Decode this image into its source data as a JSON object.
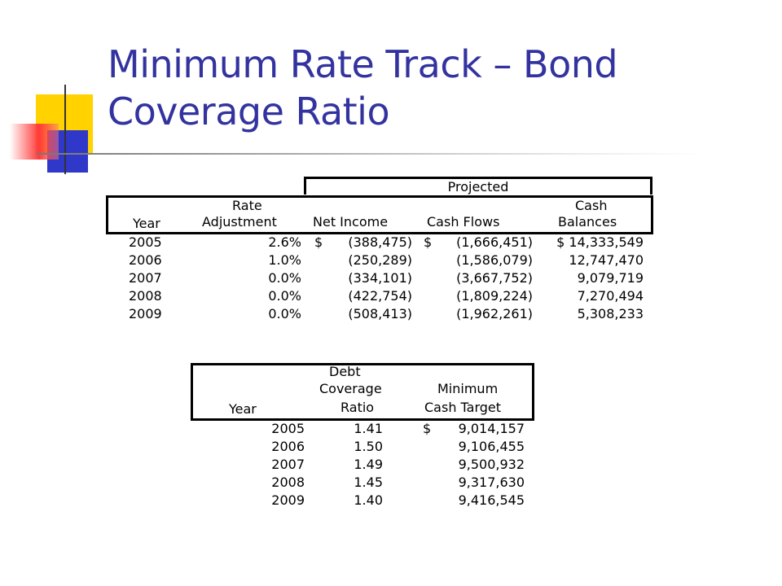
{
  "slide": {
    "title_line1": "Minimum Rate Track – Bond",
    "title_line2": "Coverage Ratio"
  },
  "table1": {
    "group_header": "Projected",
    "headers": {
      "year": "Year",
      "rate_line1": "Rate",
      "rate_line2": "Adjustment",
      "net_income": "Net Income",
      "cash_flows": "Cash Flows",
      "cash_line1": "Cash",
      "cash_line2": "Balances"
    },
    "rows": [
      {
        "year": "2005",
        "rate": "2.6%",
        "ni_sym": "$",
        "ni": "(388,475)",
        "cf_sym": "$",
        "cf": "(1,666,451)",
        "cb": "$ 14,333,549"
      },
      {
        "year": "2006",
        "rate": "1.0%",
        "ni_sym": "",
        "ni": "(250,289)",
        "cf_sym": "",
        "cf": "(1,586,079)",
        "cb": "12,747,470"
      },
      {
        "year": "2007",
        "rate": "0.0%",
        "ni_sym": "",
        "ni": "(334,101)",
        "cf_sym": "",
        "cf": "(3,667,752)",
        "cb": "9,079,719"
      },
      {
        "year": "2008",
        "rate": "0.0%",
        "ni_sym": "",
        "ni": "(422,754)",
        "cf_sym": "",
        "cf": "(1,809,224)",
        "cb": "7,270,494"
      },
      {
        "year": "2009",
        "rate": "0.0%",
        "ni_sym": "",
        "ni": "(508,413)",
        "cf_sym": "",
        "cf": "(1,962,261)",
        "cb": "5,308,233"
      }
    ]
  },
  "table2": {
    "headers": {
      "year": "Year",
      "debt_line1": "Debt",
      "debt_line2": "Coverage",
      "debt_line3": "Ratio",
      "min_line1": "Minimum",
      "min_line2": "Cash Target"
    },
    "rows": [
      {
        "year": "2005",
        "ratio": "1.41",
        "sym": "$",
        "target": "9,014,157"
      },
      {
        "year": "2006",
        "ratio": "1.50",
        "sym": "",
        "target": "9,106,455"
      },
      {
        "year": "2007",
        "ratio": "1.49",
        "sym": "",
        "target": "9,500,932"
      },
      {
        "year": "2008",
        "ratio": "1.45",
        "sym": "",
        "target": "9,317,630"
      },
      {
        "year": "2009",
        "ratio": "1.40",
        "sym": "",
        "target": "9,416,545"
      }
    ]
  }
}
